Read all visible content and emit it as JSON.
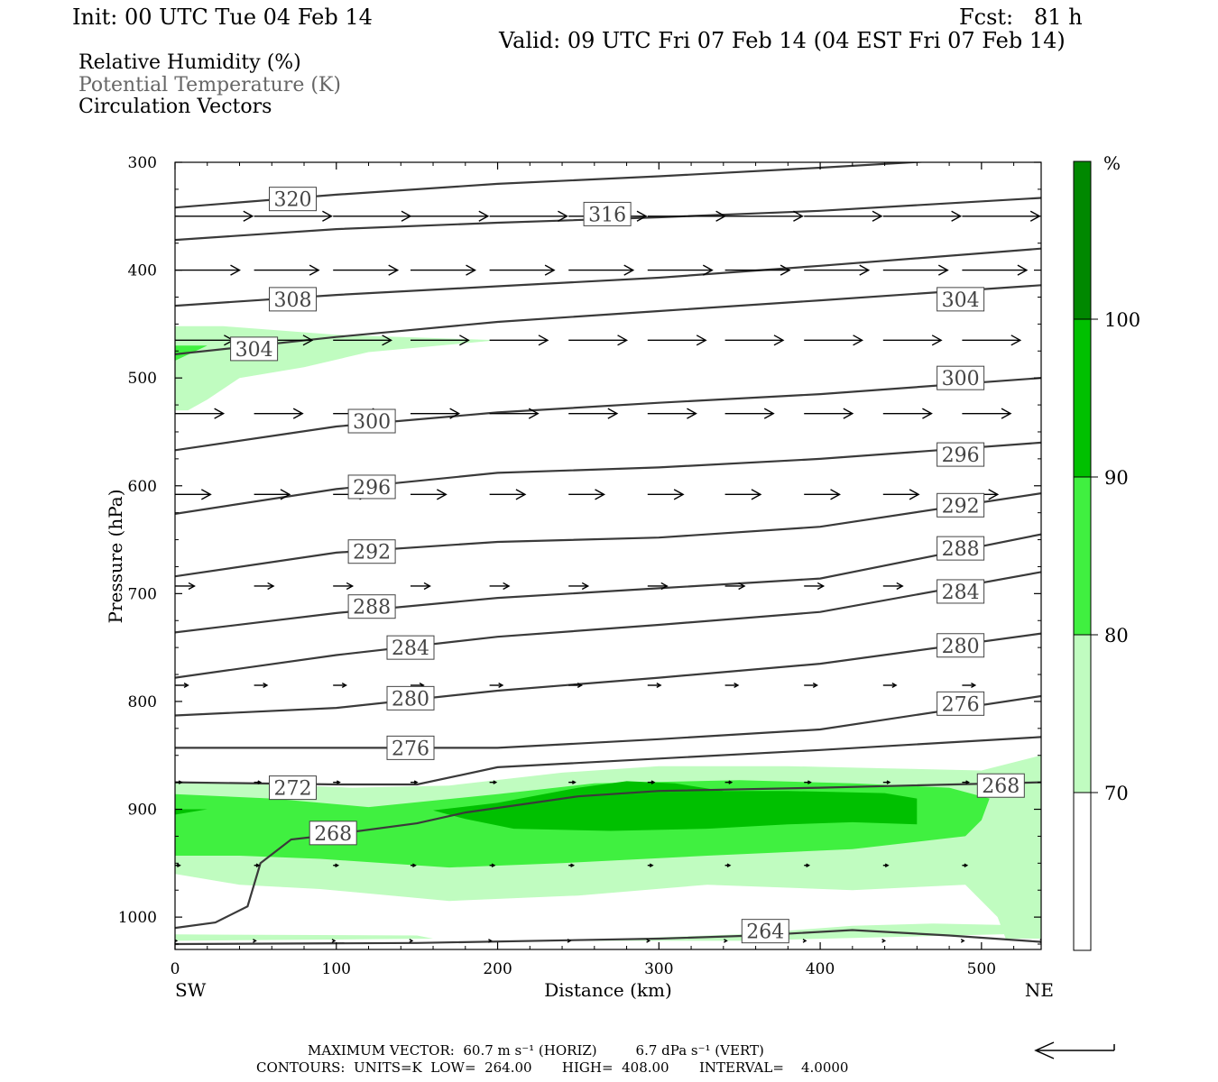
{
  "header": {
    "init": "Init: 00 UTC Tue 04 Feb 14",
    "fcst": "Fcst:   81 h",
    "valid": "Valid: 09 UTC Fri 07 Feb 14 (04 EST Fri 07 Feb 14)",
    "fields": [
      "Relative Humidity (%)",
      "Potential Temperature (K)",
      "Circulation Vectors"
    ]
  },
  "colors": {
    "rh_70_80": "#c0fcc0",
    "rh_80_90": "#40f040",
    "rh_90_100": "#00c000",
    "rh_100": "#008800",
    "theta": "#3a3a3a",
    "theta_label": "#444444",
    "subtitle_gray": "#666666"
  },
  "footer": {
    "max_vector": "MAXIMUM VECTOR:  60.7 m s⁻¹ (HORIZ)         6.7 dPa s⁻¹ (VERT)",
    "contours": "CONTOURS:  UNITS=K  LOW=  264.00       HIGH=  408.00       INTERVAL=    4.0000"
  },
  "chart_data": {
    "type": "cross-section",
    "xlabel": "Distance (km)",
    "ylabel": "Pressure (hPa)",
    "xlim": [
      0,
      537
    ],
    "ylim": [
      1030,
      300
    ],
    "x_ticks": [
      0,
      100,
      200,
      300,
      400,
      500
    ],
    "y_ticks": [
      300,
      400,
      500,
      600,
      700,
      800,
      900,
      1000
    ],
    "x_end_labels": {
      "left": "SW",
      "right": "NE"
    },
    "colorbar": {
      "unit": "%",
      "levels": [
        70,
        80,
        90,
        100
      ],
      "colors": [
        "#ffffff",
        "#c0fcc0",
        "#40f040",
        "#00c000",
        "#008800"
      ]
    },
    "rh_regions": [
      {
        "level": 70,
        "points": [
          [
            0,
            452
          ],
          [
            30,
            452
          ],
          [
            100,
            460
          ],
          [
            200,
            465
          ],
          [
            120,
            476
          ],
          [
            80,
            490
          ],
          [
            40,
            500
          ],
          [
            20,
            520
          ],
          [
            8,
            530
          ],
          [
            0,
            530
          ]
        ]
      },
      {
        "level": 70,
        "points": [
          [
            0,
            875
          ],
          [
            60,
            877
          ],
          [
            110,
            880
          ],
          [
            170,
            878
          ],
          [
            240,
            866
          ],
          [
            300,
            860
          ],
          [
            380,
            860
          ],
          [
            440,
            862
          ],
          [
            500,
            864
          ],
          [
            537,
            850
          ],
          [
            537,
            1020
          ],
          [
            515,
            1020
          ],
          [
            510,
            1000
          ],
          [
            490,
            970
          ],
          [
            420,
            975
          ],
          [
            330,
            970
          ],
          [
            250,
            980
          ],
          [
            170,
            985
          ],
          [
            90,
            974
          ],
          [
            40,
            970
          ],
          [
            0,
            960
          ]
        ]
      },
      {
        "level": 70,
        "points": [
          [
            0,
            1016
          ],
          [
            150,
            1017
          ],
          [
            160,
            1020
          ],
          [
            0,
            1022
          ]
        ]
      },
      {
        "level": 70,
        "points": [
          [
            240,
            1022
          ],
          [
            350,
            1016
          ],
          [
            420,
            1008
          ],
          [
            470,
            1006
          ],
          [
            537,
            1008
          ],
          [
            537,
            1015
          ],
          [
            350,
            1022
          ]
        ]
      },
      {
        "level": 80,
        "points": [
          [
            0,
            470
          ],
          [
            20,
            470
          ],
          [
            0,
            484
          ]
        ]
      },
      {
        "level": 80,
        "points": [
          [
            0,
            886
          ],
          [
            60,
            890
          ],
          [
            120,
            898
          ],
          [
            200,
            886
          ],
          [
            260,
            876
          ],
          [
            350,
            873
          ],
          [
            420,
            876
          ],
          [
            480,
            880
          ],
          [
            505,
            890
          ],
          [
            500,
            910
          ],
          [
            490,
            925
          ],
          [
            420,
            937
          ],
          [
            330,
            943
          ],
          [
            240,
            950
          ],
          [
            170,
            954
          ],
          [
            90,
            946
          ],
          [
            40,
            943
          ],
          [
            0,
            943
          ]
        ]
      },
      {
        "level": 90,
        "points": [
          [
            160,
            901
          ],
          [
            200,
            894
          ],
          [
            250,
            880
          ],
          [
            280,
            874
          ],
          [
            310,
            876
          ],
          [
            340,
            883
          ],
          [
            380,
            883
          ],
          [
            440,
            885
          ],
          [
            460,
            890
          ],
          [
            460,
            914
          ],
          [
            420,
            912
          ],
          [
            380,
            914
          ],
          [
            330,
            918
          ],
          [
            270,
            920
          ],
          [
            210,
            918
          ],
          [
            180,
            909
          ]
        ]
      },
      {
        "level": 90,
        "points": [
          [
            0,
            900
          ],
          [
            20,
            900
          ],
          [
            0,
            905
          ]
        ]
      }
    ],
    "theta_contours": [
      {
        "value": 320,
        "x": [
          0,
          100,
          200,
          300,
          400,
          537
        ],
        "p": [
          342,
          330,
          320,
          313,
          305,
          293
        ]
      },
      {
        "value": 316,
        "x": [
          0,
          100,
          200,
          300,
          400,
          537
        ],
        "p": [
          372,
          362,
          356,
          351,
          345,
          333
        ]
      },
      {
        "value": 308,
        "x": [
          0,
          100,
          200,
          300,
          400,
          537
        ],
        "p": [
          433,
          423,
          415,
          407,
          396,
          380
        ]
      },
      {
        "value": 304,
        "x": [
          0,
          100,
          200,
          300,
          400,
          537
        ],
        "p": [
          478,
          462,
          448,
          438,
          428,
          414
        ]
      },
      {
        "value": 300,
        "x": [
          0,
          100,
          200,
          300,
          400,
          537
        ],
        "p": [
          567,
          545,
          532,
          523,
          515,
          500
        ]
      },
      {
        "value": 296,
        "x": [
          0,
          100,
          200,
          300,
          400,
          537
        ],
        "p": [
          626,
          603,
          588,
          583,
          575,
          560
        ]
      },
      {
        "value": 292,
        "x": [
          0,
          100,
          200,
          300,
          400,
          537
        ],
        "p": [
          684,
          662,
          652,
          648,
          638,
          607
        ]
      },
      {
        "value": 288,
        "x": [
          0,
          100,
          200,
          300,
          400,
          537
        ],
        "p": [
          736,
          718,
          704,
          695,
          686,
          645
        ]
      },
      {
        "value": 284,
        "x": [
          0,
          100,
          200,
          300,
          400,
          537
        ],
        "p": [
          778,
          757,
          740,
          729,
          717,
          680
        ]
      },
      {
        "value": 280,
        "x": [
          0,
          100,
          200,
          300,
          400,
          537
        ],
        "p": [
          813,
          806,
          790,
          778,
          765,
          737
        ]
      },
      {
        "value": 276,
        "x": [
          0,
          100,
          200,
          300,
          400,
          537
        ],
        "p": [
          843,
          843,
          843,
          835,
          826,
          795
        ]
      },
      {
        "value": 272,
        "x": [
          0,
          100,
          150,
          200,
          300,
          400,
          537
        ],
        "p": [
          875,
          877,
          877,
          861,
          853,
          845,
          833
        ]
      },
      {
        "value": 268,
        "x": [
          0,
          25,
          45,
          53,
          72,
          90,
          150,
          180,
          250,
          300,
          400,
          537
        ],
        "p": [
          1010,
          1005,
          990,
          950,
          928,
          925,
          913,
          903,
          888,
          883,
          880,
          875
        ]
      },
      {
        "value": 264,
        "x": [
          0,
          150,
          300,
          360,
          420,
          480,
          537
        ],
        "p": [
          1025,
          1024,
          1020,
          1017,
          1012,
          1017,
          1023
        ]
      }
    ],
    "theta_labels": [
      {
        "text": "320",
        "x": 73,
        "p": 334
      },
      {
        "text": "316",
        "x": 268,
        "p": 348
      },
      {
        "text": "308",
        "x": 73,
        "p": 427
      },
      {
        "text": "304",
        "x": 487,
        "p": 427
      },
      {
        "text": "304",
        "x": 49,
        "p": 473
      },
      {
        "text": "300",
        "x": 487,
        "p": 500
      },
      {
        "text": "300",
        "x": 122,
        "p": 540
      },
      {
        "text": "296",
        "x": 487,
        "p": 571
      },
      {
        "text": "296",
        "x": 122,
        "p": 601
      },
      {
        "text": "292",
        "x": 487,
        "p": 618
      },
      {
        "text": "292",
        "x": 122,
        "p": 661
      },
      {
        "text": "288",
        "x": 487,
        "p": 658
      },
      {
        "text": "288",
        "x": 122,
        "p": 712
      },
      {
        "text": "284",
        "x": 487,
        "p": 698
      },
      {
        "text": "284",
        "x": 146,
        "p": 750
      },
      {
        "text": "280",
        "x": 487,
        "p": 748
      },
      {
        "text": "280",
        "x": 146,
        "p": 797
      },
      {
        "text": "276",
        "x": 487,
        "p": 802
      },
      {
        "text": "276",
        "x": 146,
        "p": 843
      },
      {
        "text": "272",
        "x": 73,
        "p": 880
      },
      {
        "text": "268",
        "x": 512,
        "p": 878
      },
      {
        "text": "268",
        "x": 98,
        "p": 922
      },
      {
        "text": "264",
        "x": 366,
        "p": 1013
      }
    ],
    "vector_rows": [
      {
        "p": 350,
        "len_km": 48
      },
      {
        "p": 400,
        "len_km": 40
      },
      {
        "p": 465,
        "len_km": 36
      },
      {
        "p": 533,
        "len_km": 30
      },
      {
        "p": 608,
        "len_km": 22
      },
      {
        "p": 693,
        "len_km": 12
      },
      {
        "p": 785,
        "len_km": 8
      },
      {
        "p": 875,
        "len_km": 4
      },
      {
        "p": 952,
        "len_km": 3
      },
      {
        "p": 1022,
        "len_km": 1
      }
    ],
    "vector_x": [
      0,
      49,
      98,
      146,
      195,
      244,
      293,
      341,
      390,
      439,
      488,
      537
    ],
    "reference_vector": "60.7 m s-1 horizontal"
  }
}
